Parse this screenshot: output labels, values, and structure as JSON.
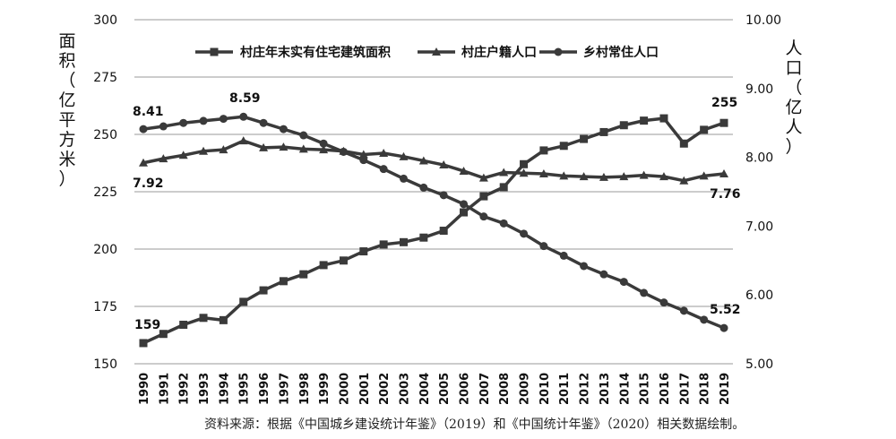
{
  "chart_data": {
    "type": "line",
    "x": [
      1990,
      1991,
      1992,
      1993,
      1994,
      1995,
      1996,
      1997,
      1998,
      1999,
      2000,
      2001,
      2002,
      2003,
      2004,
      2005,
      2006,
      2007,
      2008,
      2009,
      2010,
      2011,
      2012,
      2013,
      2014,
      2015,
      2016,
      2017,
      2018,
      2019
    ],
    "x_tick_labels": [
      "1990",
      "1991",
      "1992",
      "1993",
      "1994",
      "1995",
      "1996",
      "1997",
      "1998",
      "1999",
      "2000",
      "2001",
      "2002",
      "2003",
      "2004",
      "2005",
      "2006",
      "2007",
      "2008",
      "2009",
      "2010",
      "2011",
      "2012",
      "2013",
      "2014",
      "2015",
      "2016",
      "2017",
      "2018",
      "2019"
    ],
    "series": [
      {
        "name": "村庄年末实有住宅建筑面积",
        "axis": "left",
        "marker": "square",
        "values": [
          159,
          163,
          167,
          170,
          169,
          177,
          182,
          186,
          189,
          193,
          195,
          199,
          202,
          203,
          205,
          208,
          216,
          223,
          227,
          237,
          243,
          245,
          248,
          251,
          254,
          256,
          257,
          246,
          252,
          255
        ]
      },
      {
        "name": "村庄户籍人口",
        "axis": "right",
        "marker": "triangle",
        "values": [
          7.92,
          7.98,
          8.03,
          8.09,
          8.11,
          8.24,
          8.14,
          8.15,
          8.12,
          8.11,
          8.09,
          8.04,
          8.06,
          8.01,
          7.95,
          7.89,
          7.8,
          7.7,
          7.78,
          7.77,
          7.76,
          7.73,
          7.72,
          7.71,
          7.72,
          7.74,
          7.72,
          7.66,
          7.73,
          7.76
        ]
      },
      {
        "name": "乡村常住人口",
        "axis": "right",
        "marker": "circle",
        "values": [
          8.41,
          8.45,
          8.5,
          8.53,
          8.56,
          8.59,
          8.5,
          8.41,
          8.32,
          8.2,
          8.08,
          7.96,
          7.83,
          7.69,
          7.56,
          7.45,
          7.32,
          7.14,
          7.04,
          6.89,
          6.71,
          6.57,
          6.42,
          6.3,
          6.19,
          6.03,
          5.89,
          5.77,
          5.64,
          5.52
        ]
      }
    ],
    "y_left": {
      "title": "面积（亿平方米）",
      "ylim": [
        150,
        300
      ],
      "ticks": [
        "150",
        "175",
        "200",
        "225",
        "250",
        "275",
        "300"
      ]
    },
    "y_right": {
      "title": "人口（亿人）",
      "ylim": [
        5.0,
        10.0
      ],
      "ticks": [
        "5.00",
        "6.00",
        "7.00",
        "8.00",
        "9.00",
        "10.00"
      ]
    },
    "annotations": [
      "8.41",
      "8.59",
      "7.92",
      "159",
      "255",
      "7.76",
      "5.52"
    ],
    "legend_position": "top",
    "grid": "horizontal",
    "line_color": "#3a3a3a"
  },
  "source_note": "资料来源：根据《中国城乡建设统计年鉴》（2019）和《中国统计年鉴》（2020）相关数据绘制。"
}
